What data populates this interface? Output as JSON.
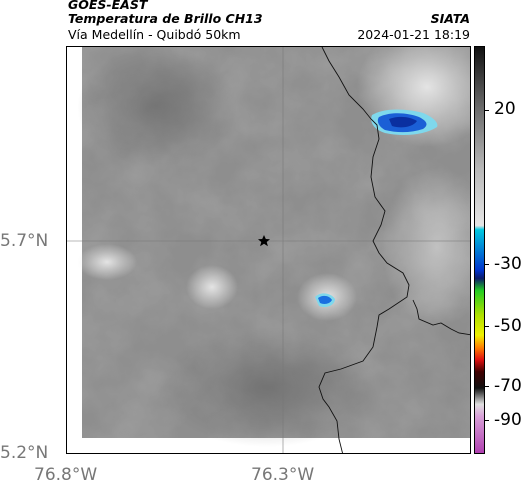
{
  "header": {
    "title1": "GOES-EAST",
    "title2": "Temperatura de Brillo CH13",
    "subtitle": "Vía Medellín - Quibdó 50km",
    "org": "SIATA",
    "datetime": "2024-01-21 18:19"
  },
  "map": {
    "lat_ticks": [
      "5.7°N",
      "5.2°N"
    ],
    "lon_ticks": [
      "76.8°W",
      "76.3°W"
    ],
    "marker_icon": "star-icon"
  },
  "colorbar": {
    "ticks": [
      "20",
      "-30",
      "-50",
      "-70",
      "-90"
    ],
    "unit_colors": {
      "warm_gray_top": "#111111",
      "cold_cyan": "#00c8e0",
      "cold_blue": "#0033cc",
      "green": "#22cc22",
      "yellow": "#f0f000",
      "red": "#e01010",
      "magenta": "#b040b0"
    }
  }
}
